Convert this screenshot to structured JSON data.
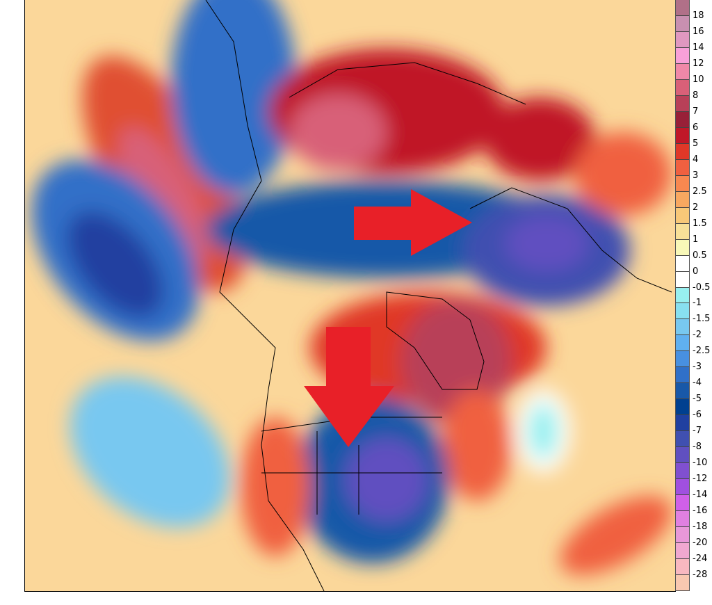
{
  "colorbar": {
    "labels": [
      "18",
      "16",
      "14",
      "12",
      "10",
      "8",
      "7",
      "6",
      "5",
      "4",
      "3",
      "2.5",
      "2",
      "1.5",
      "1",
      "0.5",
      "0",
      "-0.5",
      "-1",
      "-1.5",
      "-2",
      "-2.5",
      "-3",
      "-4",
      "-5",
      "-6",
      "-7",
      "-8",
      "-10",
      "-12",
      "-14",
      "-16",
      "-18",
      "-20",
      "-24",
      "-28"
    ],
    "colors": [
      "#b07088",
      "#c890b0",
      "#e098c0",
      "#f8a0d8",
      "#f088a8",
      "#d86078",
      "#b84058",
      "#982038",
      "#c01828",
      "#e03828",
      "#f06040",
      "#f88850",
      "#f8a860",
      "#f8c878",
      "#f8e098",
      "#f8f8b8",
      "#ffffff",
      "#ffffff",
      "#98f0f0",
      "#88e0f0",
      "#78c8f0",
      "#60b0f0",
      "#4890e0",
      "#3070c8",
      "#1858a8",
      "#004090",
      "#2040a0",
      "#4050b0",
      "#6050c0",
      "#8050d0",
      "#a050e0",
      "#d060e8",
      "#e080e0",
      "#e898d8",
      "#f0a8d0",
      "#f8b8c0",
      "#f8c8b0"
    ]
  },
  "annotations": {
    "arrow_color": "#e82028",
    "arrows": [
      "arrow-right-toward-europe",
      "arrow-down-toward-north-america"
    ]
  }
}
